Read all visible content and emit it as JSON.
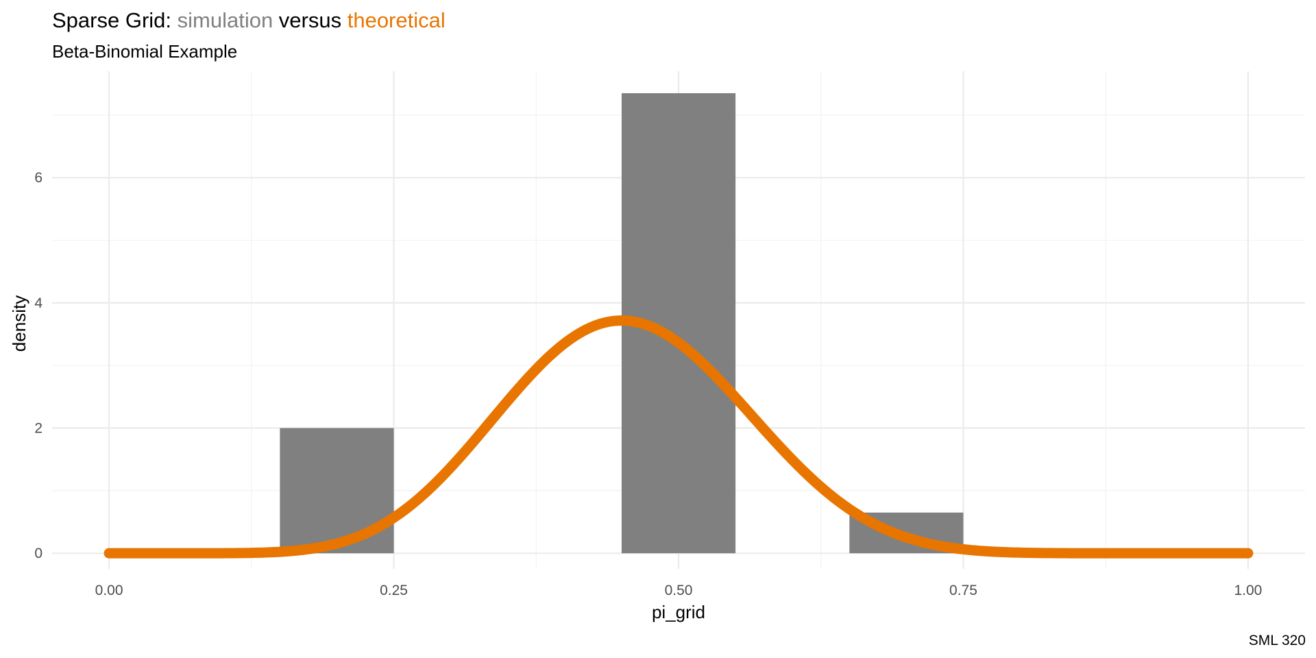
{
  "colors": {
    "simulation": "#808080",
    "theoretical": "#E87500",
    "title": "#000000"
  },
  "chart_data": {
    "type": "bar",
    "title_parts": [
      {
        "text": "Sparse Grid: ",
        "role": "plain"
      },
      {
        "text": "simulation",
        "role": "simulation"
      },
      {
        "text": " versus ",
        "role": "plain"
      },
      {
        "text": "theoretical",
        "role": "theoretical"
      }
    ],
    "subtitle": "Beta-Binomial Example",
    "xlabel": "pi_grid",
    "ylabel": "density",
    "caption": "SML 320",
    "xlim": [
      -0.05,
      1.05
    ],
    "ylim": [
      -0.25,
      7.7
    ],
    "x_ticks": [
      {
        "value": 0,
        "label": "0.00"
      },
      {
        "value": 0.25,
        "label": "0.25"
      },
      {
        "value": 0.5,
        "label": "0.50"
      },
      {
        "value": 0.75,
        "label": "0.75"
      },
      {
        "value": 1,
        "label": "1.00"
      }
    ],
    "x_minor_ticks": [
      0.125,
      0.375,
      0.625,
      0.875
    ],
    "y_ticks": [
      {
        "value": 0,
        "label": "0"
      },
      {
        "value": 2,
        "label": "2"
      },
      {
        "value": 4,
        "label": "4"
      },
      {
        "value": 6,
        "label": "6"
      }
    ],
    "y_minor_ticks": [
      1,
      3,
      5,
      7
    ],
    "series": [
      {
        "name": "simulation",
        "type": "histogram",
        "bins": [
          {
            "x0": 0.15,
            "x1": 0.25,
            "density": 2.0
          },
          {
            "x0": 0.45,
            "x1": 0.55,
            "density": 7.35
          },
          {
            "x0": 0.65,
            "x1": 0.75,
            "density": 0.65
          }
        ]
      },
      {
        "name": "theoretical",
        "type": "line",
        "distribution": "Beta(10, 12)",
        "x": [
          0,
          0.05,
          0.1,
          0.15,
          0.2,
          0.25,
          0.3,
          0.35,
          0.4,
          0.45,
          0.5,
          0.55,
          0.6,
          0.65,
          0.7,
          0.75,
          0.8,
          0.85,
          0.9,
          0.95,
          1
        ],
        "y": [
          0,
          0.0001,
          0.0265,
          0.1917,
          0.6005,
          1.1902,
          1.8215,
          2.4008,
          2.8229,
          3.0125,
          2.9329,
          2.5996,
          2.0818,
          1.4905,
          0.9402,
          0.5046,
          0.2193,
          0.0713,
          0.0151,
          0.0015,
          0
        ]
      }
    ]
  }
}
